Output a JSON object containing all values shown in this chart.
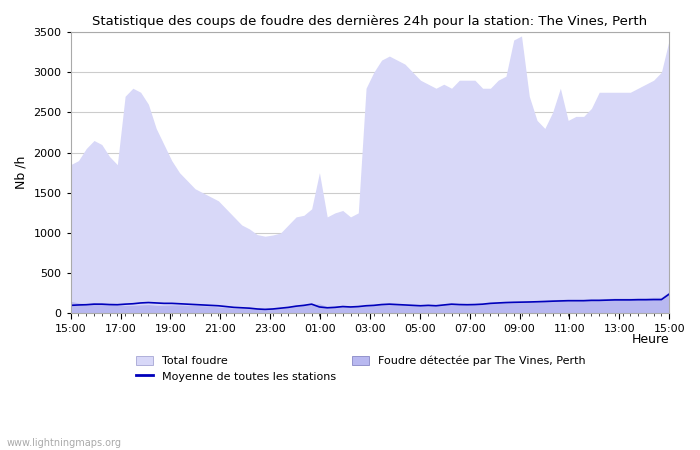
{
  "title": "Statistique des coups de foudre des dernières 24h pour la station: The Vines, Perth",
  "ylabel": "Nb /h",
  "xlabel": "Heure",
  "ylim": [
    0,
    3500
  ],
  "yticks": [
    0,
    500,
    1000,
    1500,
    2000,
    2500,
    3000,
    3500
  ],
  "xtick_labels": [
    "15:00",
    "17:00",
    "19:00",
    "21:00",
    "23:00",
    "01:00",
    "03:00",
    "05:00",
    "07:00",
    "09:00",
    "11:00",
    "13:00",
    "15:00"
  ],
  "watermark": "www.lightningmaps.org",
  "legend_total": "Total foudre",
  "legend_moyenne": "Moyenne de toutes les stations",
  "legend_detected": "Foudre détectée par The Vines, Perth",
  "fill_color_total": "#d8d8f8",
  "fill_color_detected": "#b8b8f0",
  "line_color_moyenne": "#0000bb",
  "bg_color": "#ffffff",
  "grid_color": "#cccccc",
  "total_foudre": [
    1850,
    1900,
    2050,
    2150,
    2100,
    1950,
    1850,
    2700,
    2800,
    2750,
    2600,
    2300,
    2100,
    1900,
    1750,
    1650,
    1550,
    1500,
    1450,
    1400,
    1300,
    1200,
    1100,
    1050,
    980,
    960,
    975,
    1000,
    1100,
    1200,
    1220,
    1300,
    1750,
    1200,
    1250,
    1280,
    1200,
    1250,
    2800,
    3000,
    3150,
    3200,
    3150,
    3100,
    3000,
    2900,
    2850,
    2800,
    2850,
    2800,
    2900,
    2900,
    2900,
    2800,
    2800,
    2900,
    2950,
    3400,
    3450,
    2700,
    2400,
    2300,
    2500,
    2800,
    2400,
    2450,
    2450,
    2550,
    2750,
    2750,
    2750,
    2750,
    2750,
    2800,
    2850,
    2900,
    3000,
    3400
  ],
  "foudre_detected": [
    150,
    130,
    120,
    130,
    120,
    115,
    105,
    100,
    100,
    105,
    110,
    100,
    100,
    105,
    105,
    100,
    100,
    95,
    90,
    80,
    75,
    65,
    65,
    60,
    55,
    55,
    60,
    65,
    80,
    90,
    100,
    110,
    120,
    85,
    90,
    100,
    90,
    95,
    100,
    110,
    120,
    115,
    110,
    105,
    100,
    95,
    100,
    95,
    110,
    120,
    115,
    110,
    115,
    120,
    130,
    135,
    140,
    145,
    150,
    155,
    160,
    165,
    170,
    175,
    175,
    175,
    175,
    180,
    180,
    185,
    190,
    190,
    190,
    195,
    195,
    200,
    200,
    270
  ],
  "moyenne": [
    100,
    105,
    108,
    115,
    115,
    110,
    108,
    115,
    120,
    130,
    135,
    130,
    125,
    125,
    120,
    115,
    110,
    105,
    100,
    95,
    85,
    75,
    70,
    65,
    55,
    50,
    55,
    65,
    75,
    90,
    100,
    115,
    80,
    70,
    75,
    85,
    80,
    85,
    95,
    100,
    110,
    115,
    110,
    105,
    100,
    95,
    100,
    95,
    105,
    115,
    110,
    108,
    110,
    115,
    125,
    130,
    135,
    138,
    140,
    142,
    145,
    148,
    152,
    155,
    158,
    158,
    158,
    162,
    162,
    165,
    168,
    168,
    168,
    170,
    170,
    172,
    172,
    240
  ]
}
